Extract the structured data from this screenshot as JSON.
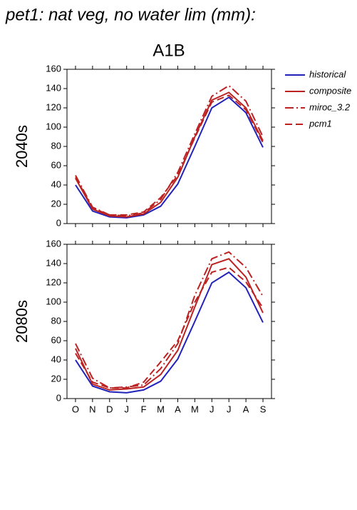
{
  "chart_data": {
    "type": "line",
    "title": "pet1: nat veg, no water lim (mm):",
    "subtitle": "A1B",
    "categories": [
      "O",
      "N",
      "D",
      "J",
      "F",
      "M",
      "A",
      "M",
      "J",
      "J",
      "A",
      "S"
    ],
    "ylim": [
      0,
      160
    ],
    "yticks": [
      0,
      20,
      40,
      60,
      80,
      100,
      120,
      140,
      160
    ],
    "series": [
      {
        "name": "historical",
        "color": "#2222bb",
        "dash": "none"
      },
      {
        "name": "composite",
        "color": "#bb2222",
        "dash": "none"
      },
      {
        "name": "miroc_3.2",
        "color": "#bb2222",
        "dash": "12,4,2,4"
      },
      {
        "name": "pcm1",
        "color": "#bb2222",
        "dash": "10,5"
      }
    ],
    "panels": [
      {
        "ylabel": "2040s",
        "values": [
          [
            40,
            13,
            7,
            6,
            9,
            18,
            41,
            80,
            120,
            131,
            115,
            79
          ],
          [
            47,
            15,
            8,
            7,
            10,
            22,
            48,
            90,
            128,
            136,
            120,
            86
          ],
          [
            50,
            17,
            9,
            8,
            11,
            25,
            53,
            93,
            132,
            143,
            127,
            90
          ],
          [
            48,
            16,
            9,
            9,
            12,
            27,
            50,
            89,
            126,
            133,
            118,
            84
          ]
        ]
      },
      {
        "ylabel": "2080s",
        "values": [
          [
            40,
            13,
            7,
            6,
            9,
            18,
            41,
            80,
            120,
            131,
            115,
            79
          ],
          [
            52,
            15,
            9,
            10,
            12,
            25,
            50,
            95,
            139,
            145,
            126,
            89
          ],
          [
            57,
            21,
            11,
            12,
            14,
            31,
            57,
            107,
            145,
            152,
            136,
            106
          ],
          [
            47,
            17,
            11,
            11,
            17,
            38,
            60,
            100,
            131,
            136,
            121,
            94
          ]
        ]
      }
    ]
  }
}
